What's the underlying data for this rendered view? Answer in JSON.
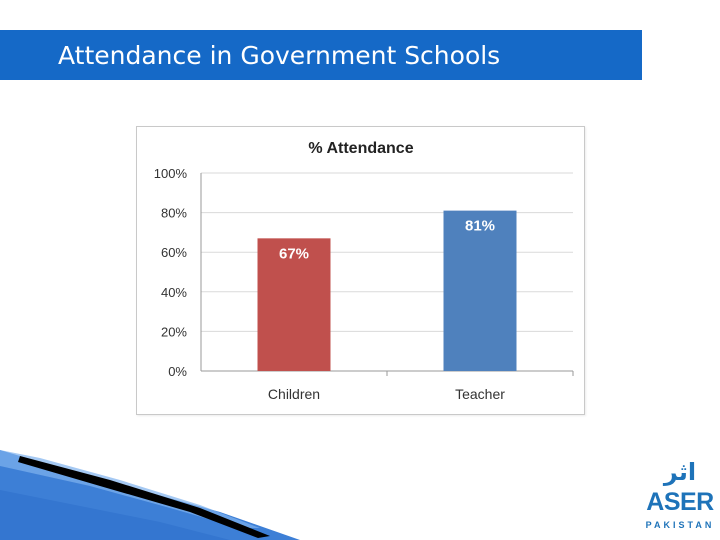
{
  "slide": {
    "title": "Attendance in Government Schools"
  },
  "logo": {
    "urdu_text": "اثر",
    "name": "ASER",
    "country": "PAKISTAN"
  },
  "colors": {
    "title_bar": "#1569c7",
    "children_bar": "#c0504d",
    "teacher_bar": "#4f81bd"
  },
  "chart_data": {
    "type": "bar",
    "title": "% Attendance",
    "categories": [
      "Children",
      "Teacher"
    ],
    "values": [
      67,
      81
    ],
    "data_labels": [
      "67%",
      "81%"
    ],
    "bar_colors": [
      "#c0504d",
      "#4f81bd"
    ],
    "ylim": [
      0,
      100
    ],
    "yticks": [
      "0%",
      "20%",
      "40%",
      "60%",
      "80%",
      "100%"
    ],
    "xlabel": "",
    "ylabel": "",
    "grid": true,
    "legend": false
  }
}
